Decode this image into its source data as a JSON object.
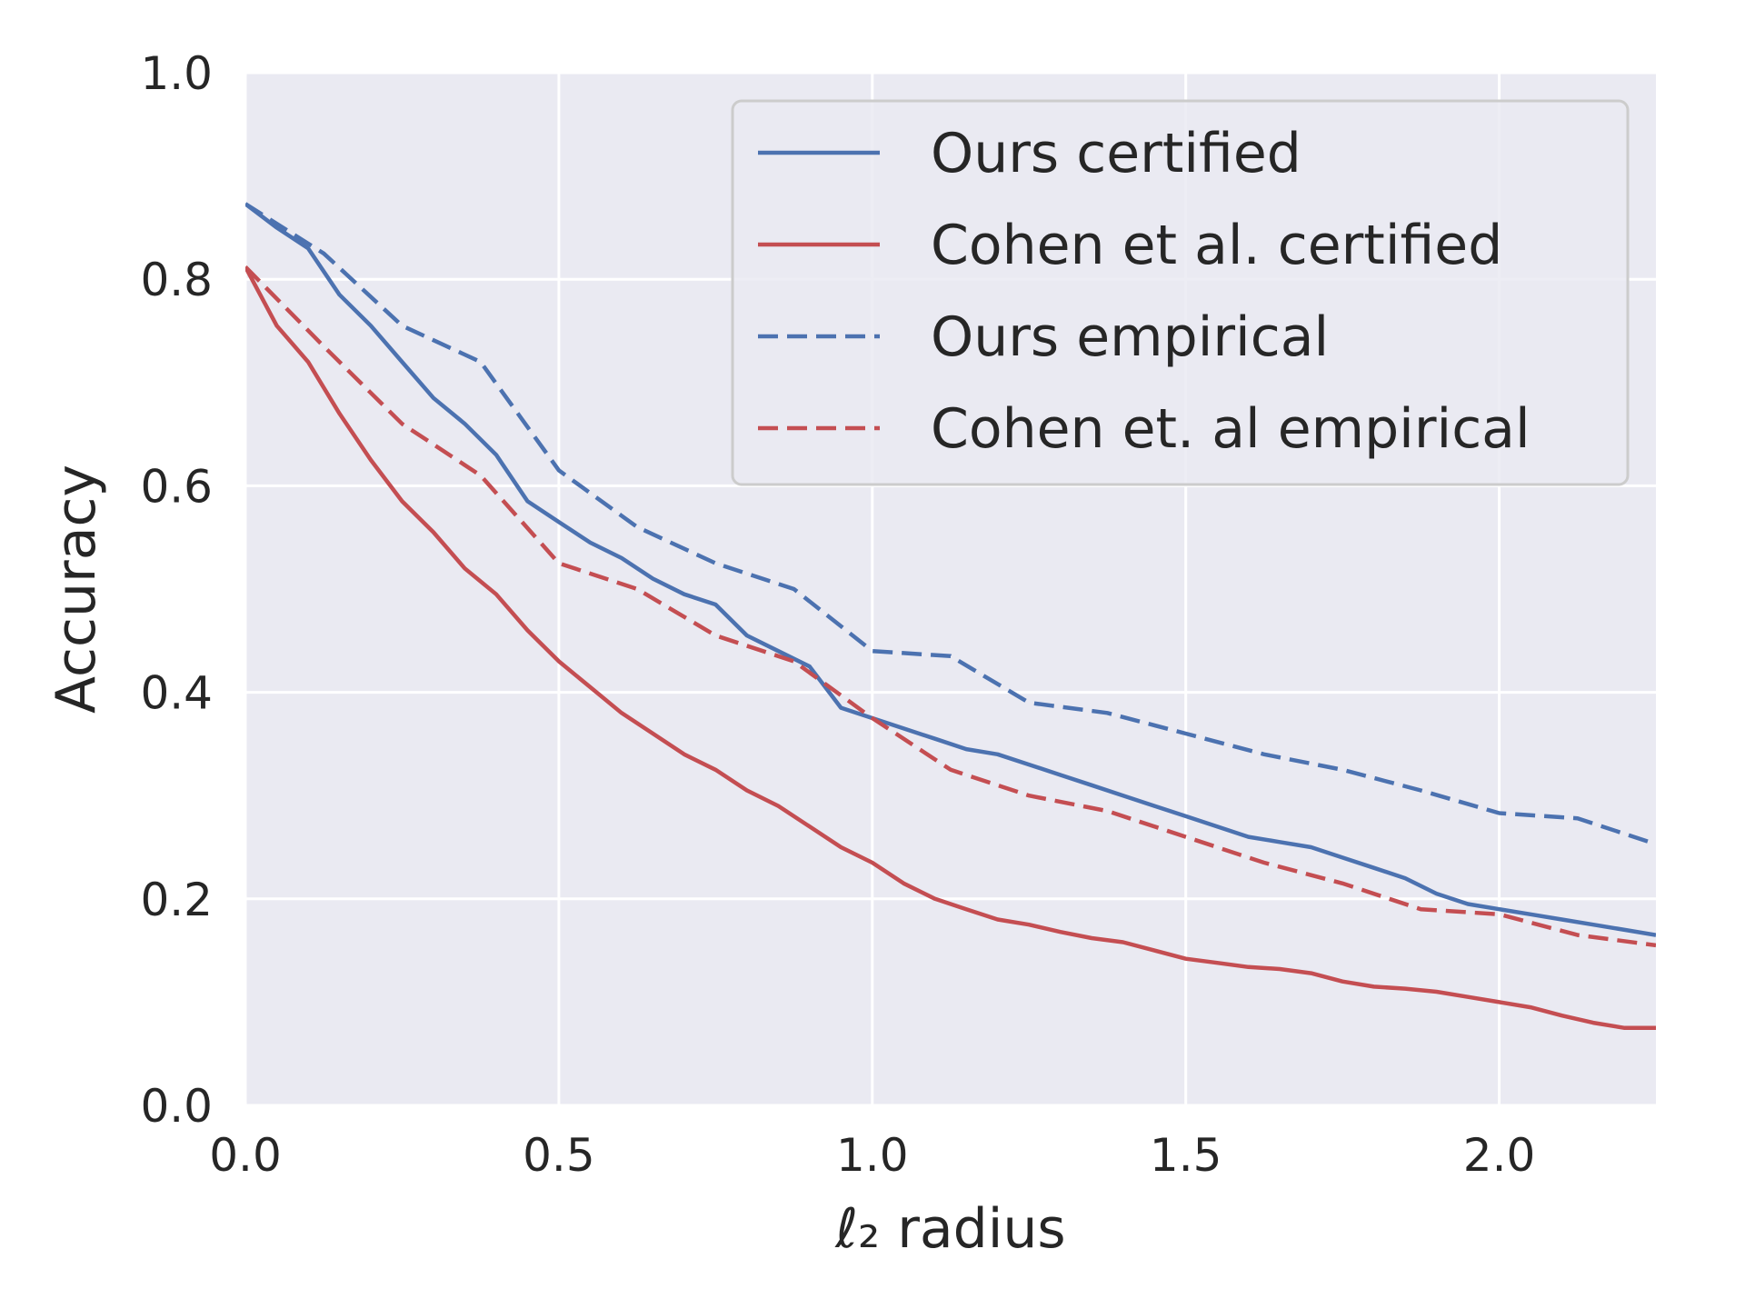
{
  "chart_data": {
    "type": "line",
    "title": "",
    "xlabel": "ℓ₂ radius",
    "ylabel": "Accuracy",
    "xlim": [
      0,
      2.25
    ],
    "ylim": [
      0,
      1.0
    ],
    "xticks": [
      "0.0",
      "0.5",
      "1.0",
      "1.5",
      "2.0"
    ],
    "yticks": [
      "0.0",
      "0.2",
      "0.4",
      "0.6",
      "0.8",
      "1.0"
    ],
    "grid": true,
    "legend_position": "top-right",
    "background_color": "#eaeaf2",
    "grid_color": "#ffffff",
    "series": [
      {
        "name": "Ours certified",
        "color": "#4c72b0",
        "style": "solid",
        "x": [
          0,
          0.05,
          0.1,
          0.15,
          0.2,
          0.25,
          0.3,
          0.35,
          0.4,
          0.45,
          0.5,
          0.55,
          0.6,
          0.65,
          0.7,
          0.75,
          0.8,
          0.85,
          0.9,
          0.95,
          1.0,
          1.05,
          1.1,
          1.15,
          1.2,
          1.25,
          1.3,
          1.35,
          1.4,
          1.45,
          1.5,
          1.55,
          1.6,
          1.65,
          1.7,
          1.75,
          1.8,
          1.85,
          1.9,
          1.95,
          2.0,
          2.05,
          2.1,
          2.15,
          2.2,
          2.25
        ],
        "y": [
          0.873,
          0.85,
          0.83,
          0.785,
          0.755,
          0.72,
          0.685,
          0.66,
          0.63,
          0.585,
          0.565,
          0.545,
          0.53,
          0.51,
          0.495,
          0.485,
          0.455,
          0.44,
          0.425,
          0.385,
          0.375,
          0.365,
          0.355,
          0.345,
          0.34,
          0.33,
          0.32,
          0.31,
          0.3,
          0.29,
          0.28,
          0.27,
          0.26,
          0.255,
          0.25,
          0.24,
          0.23,
          0.22,
          0.205,
          0.195,
          0.19,
          0.185,
          0.18,
          0.175,
          0.17,
          0.165
        ]
      },
      {
        "name": "Cohen et al. certified",
        "color": "#c44e52",
        "style": "solid",
        "x": [
          0,
          0.05,
          0.1,
          0.15,
          0.2,
          0.25,
          0.3,
          0.35,
          0.4,
          0.45,
          0.5,
          0.55,
          0.6,
          0.65,
          0.7,
          0.75,
          0.8,
          0.85,
          0.9,
          0.95,
          1.0,
          1.05,
          1.1,
          1.15,
          1.2,
          1.25,
          1.3,
          1.35,
          1.4,
          1.45,
          1.5,
          1.55,
          1.6,
          1.65,
          1.7,
          1.75,
          1.8,
          1.85,
          1.9,
          1.95,
          2.0,
          2.05,
          2.1,
          2.15,
          2.2,
          2.25
        ],
        "y": [
          0.812,
          0.755,
          0.72,
          0.67,
          0.625,
          0.585,
          0.555,
          0.52,
          0.495,
          0.46,
          0.43,
          0.405,
          0.38,
          0.36,
          0.34,
          0.325,
          0.305,
          0.29,
          0.27,
          0.25,
          0.235,
          0.215,
          0.2,
          0.19,
          0.18,
          0.175,
          0.168,
          0.162,
          0.158,
          0.15,
          0.142,
          0.138,
          0.134,
          0.132,
          0.128,
          0.12,
          0.115,
          0.113,
          0.11,
          0.105,
          0.1,
          0.095,
          0.087,
          0.08,
          0.075,
          0.075
        ]
      },
      {
        "name": "Ours empirical",
        "color": "#4c72b0",
        "style": "dashed",
        "x": [
          0,
          0.125,
          0.25,
          0.375,
          0.5,
          0.625,
          0.75,
          0.875,
          1.0,
          1.125,
          1.25,
          1.375,
          1.5,
          1.625,
          1.75,
          1.875,
          2.0,
          2.125,
          2.25
        ],
        "y": [
          0.873,
          0.825,
          0.755,
          0.72,
          0.615,
          0.56,
          0.525,
          0.5,
          0.44,
          0.435,
          0.39,
          0.38,
          0.36,
          0.34,
          0.325,
          0.305,
          0.283,
          0.278,
          0.253
        ]
      },
      {
        "name": "Cohen et. al empirical",
        "color": "#c44e52",
        "style": "dashed",
        "x": [
          0,
          0.125,
          0.25,
          0.375,
          0.5,
          0.625,
          0.75,
          0.875,
          1.0,
          1.125,
          1.25,
          1.375,
          1.5,
          1.625,
          1.75,
          1.875,
          2.0,
          2.125,
          2.25
        ],
        "y": [
          0.812,
          0.735,
          0.66,
          0.61,
          0.525,
          0.5,
          0.455,
          0.43,
          0.375,
          0.325,
          0.3,
          0.285,
          0.26,
          0.235,
          0.215,
          0.19,
          0.185,
          0.165,
          0.155
        ]
      }
    ]
  }
}
